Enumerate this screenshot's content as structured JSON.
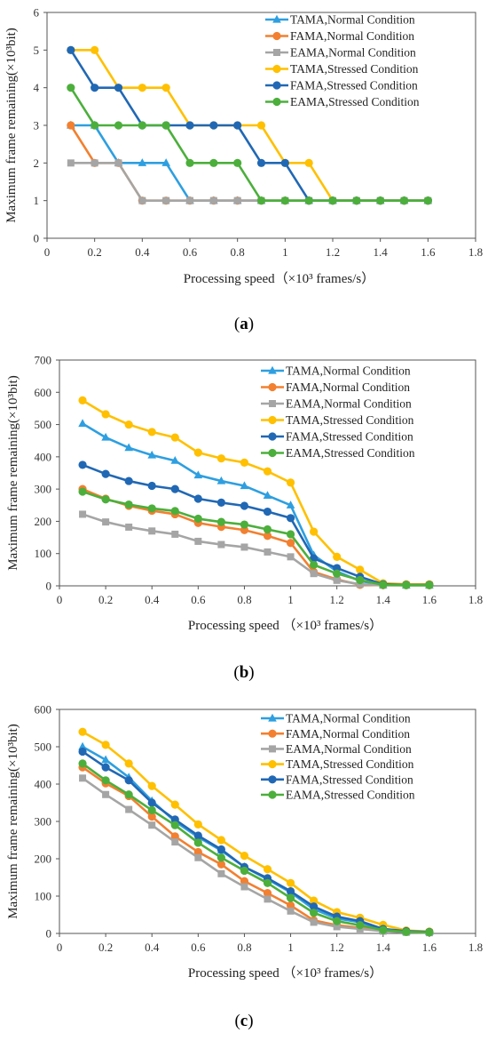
{
  "chart_data": [
    {
      "type": "line",
      "panel_label": "a",
      "xlabel": "Processing speed（×10³ frames/s）",
      "ylabel": "Maximum frame remaining(×10³bit)",
      "xlim": [
        0,
        1.8
      ],
      "ylim": [
        0,
        6
      ],
      "xticks": [
        "0",
        "0.2",
        "0.4",
        "0.6",
        "0.8",
        "1",
        "1.2",
        "1.4",
        "1.6",
        "1.8"
      ],
      "yticks": [
        "0",
        "1",
        "2",
        "3",
        "4",
        "5",
        "6"
      ],
      "grid": false,
      "legend_position": "top-right",
      "x": [
        0.1,
        0.2,
        0.3,
        0.4,
        0.5,
        0.6,
        0.7,
        0.8,
        0.9,
        1.0,
        1.1,
        1.2,
        1.3,
        1.4,
        1.5,
        1.6
      ],
      "series": [
        {
          "name": "TAMA,Normal Condition",
          "color": "#2E9FE0",
          "marker": "triangle",
          "values": [
            3,
            3,
            2,
            2,
            2,
            1,
            1,
            1,
            1,
            1,
            1,
            1,
            1,
            1,
            1,
            1
          ]
        },
        {
          "name": "FAMA,Normal Condition",
          "color": "#F28030",
          "marker": "circle",
          "values": [
            3,
            2,
            2,
            1,
            1,
            1,
            1,
            1,
            1,
            1,
            1,
            1,
            1,
            1,
            1,
            1
          ]
        },
        {
          "name": "EAMA,Normal Condition",
          "color": "#A5A5A5",
          "marker": "square",
          "values": [
            2,
            2,
            2,
            1,
            1,
            1,
            1,
            1,
            1,
            1,
            1,
            1,
            1,
            1,
            1,
            1
          ]
        },
        {
          "name": "TAMA,Stressed Condition",
          "color": "#FFC000",
          "marker": "circle",
          "values": [
            5,
            5,
            4,
            4,
            4,
            3,
            3,
            3,
            3,
            2,
            2,
            1,
            1,
            1,
            1,
            1
          ]
        },
        {
          "name": "FAMA,Stressed Condition",
          "color": "#2168B4",
          "marker": "circle",
          "values": [
            5,
            4,
            4,
            3,
            3,
            3,
            3,
            3,
            2,
            2,
            1,
            1,
            1,
            1,
            1,
            1
          ]
        },
        {
          "name": "EAMA,Stressed Condition",
          "color": "#4CAF3C",
          "marker": "circle",
          "values": [
            4,
            3,
            3,
            3,
            3,
            2,
            2,
            2,
            1,
            1,
            1,
            1,
            1,
            1,
            1,
            1
          ]
        }
      ]
    },
    {
      "type": "line",
      "panel_label": "b",
      "xlabel": "Processing speed （×10³ frames/s）",
      "ylabel": "Maximum frame remaining(×10³bit)",
      "xlim": [
        0,
        1.8
      ],
      "ylim": [
        0,
        700
      ],
      "xticks": [
        "0",
        "0.2",
        "0.4",
        "0.6",
        "0.8",
        "1",
        "1.2",
        "1.4",
        "1.6",
        "1.8"
      ],
      "yticks": [
        "0",
        "100",
        "200",
        "300",
        "400",
        "500",
        "600",
        "700"
      ],
      "grid": false,
      "legend_position": "top-right",
      "x": [
        0.1,
        0.2,
        0.3,
        0.4,
        0.5,
        0.6,
        0.7,
        0.8,
        0.9,
        1.0,
        1.1,
        1.2,
        1.3,
        1.4,
        1.5,
        1.6
      ],
      "series": [
        {
          "name": "TAMA,Normal Condition",
          "color": "#2E9FE0",
          "marker": "triangle",
          "values": [
            503,
            460,
            428,
            405,
            388,
            343,
            325,
            310,
            280,
            250,
            95,
            45,
            15,
            3,
            2,
            2
          ]
        },
        {
          "name": "FAMA,Normal Condition",
          "color": "#F28030",
          "marker": "circle",
          "values": [
            300,
            270,
            248,
            233,
            222,
            195,
            183,
            173,
            155,
            133,
            43,
            20,
            3,
            2,
            2,
            2
          ]
        },
        {
          "name": "EAMA,Normal Condition",
          "color": "#A5A5A5",
          "marker": "square",
          "values": [
            222,
            198,
            182,
            170,
            160,
            138,
            128,
            120,
            105,
            90,
            38,
            17,
            5,
            2,
            2,
            2
          ]
        },
        {
          "name": "TAMA,Stressed Condition",
          "color": "#FFC000",
          "marker": "circle",
          "values": [
            575,
            532,
            500,
            477,
            460,
            413,
            395,
            382,
            355,
            320,
            168,
            90,
            50,
            8,
            5,
            5
          ]
        },
        {
          "name": "FAMA,Stressed Condition",
          "color": "#2168B4",
          "marker": "circle",
          "values": [
            375,
            347,
            325,
            310,
            300,
            270,
            258,
            248,
            230,
            210,
            85,
            55,
            28,
            5,
            3,
            3
          ]
        },
        {
          "name": "EAMA,Stressed Condition",
          "color": "#4CAF3C",
          "marker": "circle",
          "values": [
            292,
            268,
            252,
            240,
            232,
            208,
            198,
            190,
            175,
            160,
            65,
            38,
            18,
            3,
            2,
            2
          ]
        }
      ]
    },
    {
      "type": "line",
      "panel_label": "c",
      "xlabel": "Processing speed （×10³ frames/s）",
      "ylabel": "Maximum frame remaining(×10³bit)",
      "xlim": [
        0,
        1.8
      ],
      "ylim": [
        0,
        600
      ],
      "xticks": [
        "0",
        "0.2",
        "0.4",
        "0.6",
        "0.8",
        "1",
        "1.2",
        "1.4",
        "1.6",
        "1.8"
      ],
      "yticks": [
        "0",
        "100",
        "200",
        "300",
        "400",
        "500",
        "600"
      ],
      "grid": false,
      "legend_position": "top-right",
      "x": [
        0.1,
        0.2,
        0.3,
        0.4,
        0.5,
        0.6,
        0.7,
        0.8,
        0.9,
        1.0,
        1.1,
        1.2,
        1.3,
        1.4,
        1.5,
        1.6
      ],
      "series": [
        {
          "name": "TAMA,Normal Condition",
          "color": "#2E9FE0",
          "marker": "triangle",
          "values": [
            500,
            465,
            418,
            355,
            300,
            258,
            222,
            178,
            145,
            110,
            65,
            40,
            30,
            10,
            5,
            4
          ]
        },
        {
          "name": "FAMA,Normal Condition",
          "color": "#F28030",
          "marker": "circle",
          "values": [
            445,
            402,
            368,
            313,
            260,
            218,
            185,
            140,
            108,
            75,
            35,
            22,
            15,
            8,
            4,
            3
          ]
        },
        {
          "name": "EAMA,Normal Condition",
          "color": "#A5A5A5",
          "marker": "square",
          "values": [
            416,
            372,
            332,
            290,
            245,
            203,
            160,
            125,
            92,
            60,
            30,
            18,
            12,
            6,
            3,
            2
          ]
        },
        {
          "name": "TAMA,Stressed Condition",
          "color": "#FFC000",
          "marker": "circle",
          "values": [
            540,
            505,
            455,
            395,
            345,
            292,
            250,
            208,
            172,
            135,
            88,
            57,
            42,
            23,
            8,
            5
          ]
        },
        {
          "name": "FAMA,Stressed Condition",
          "color": "#2168B4",
          "marker": "circle",
          "values": [
            487,
            445,
            410,
            350,
            305,
            262,
            225,
            178,
            148,
            113,
            72,
            45,
            33,
            12,
            6,
            4
          ]
        },
        {
          "name": "EAMA,Stressed Condition",
          "color": "#4CAF3C",
          "marker": "circle",
          "values": [
            455,
            410,
            372,
            330,
            290,
            243,
            203,
            168,
            135,
            95,
            55,
            33,
            22,
            9,
            4,
            3
          ]
        }
      ]
    }
  ]
}
